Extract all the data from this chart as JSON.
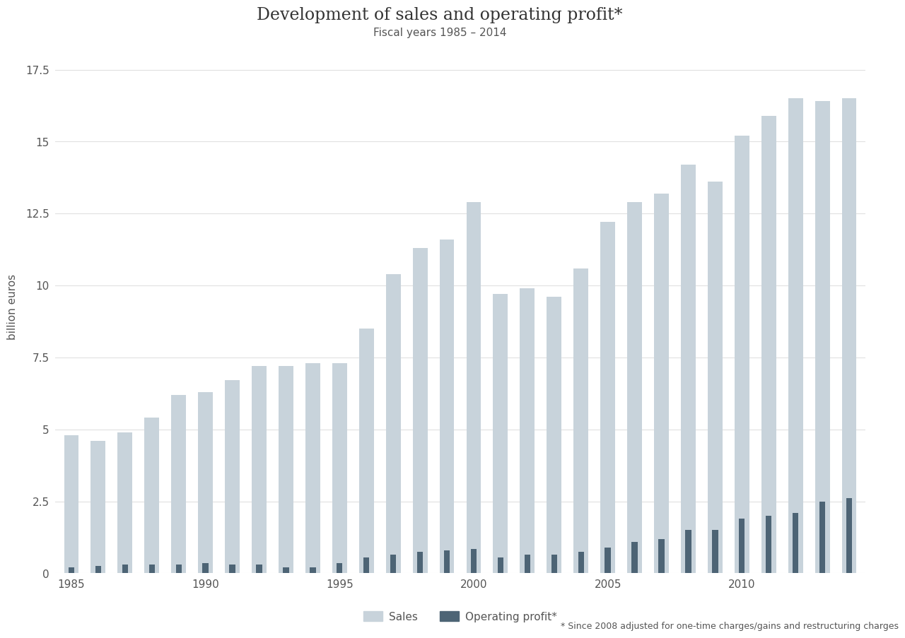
{
  "title": "Development of sales and operating profit*",
  "subtitle": "Fiscal years 1985 – 2014",
  "ylabel": "billion euros",
  "footnote": "* Since 2008 adjusted for one-time charges/gains and restructuring charges",
  "years": [
    1985,
    1986,
    1987,
    1988,
    1989,
    1990,
    1991,
    1992,
    1993,
    1994,
    1995,
    1996,
    1997,
    1998,
    1999,
    2000,
    2001,
    2002,
    2003,
    2004,
    2005,
    2006,
    2007,
    2008,
    2009,
    2010,
    2011,
    2012,
    2013,
    2014
  ],
  "sales": [
    4.8,
    4.6,
    4.9,
    5.4,
    6.2,
    6.3,
    6.7,
    7.2,
    7.2,
    7.3,
    7.3,
    8.5,
    10.4,
    11.3,
    11.6,
    12.9,
    9.7,
    9.9,
    9.6,
    10.6,
    12.2,
    12.9,
    13.2,
    14.2,
    13.6,
    15.2,
    15.9,
    16.5,
    16.4,
    16.5
  ],
  "op_profit": [
    0.2,
    0.25,
    0.3,
    0.3,
    0.3,
    0.35,
    0.3,
    0.3,
    0.2,
    0.2,
    0.35,
    0.55,
    0.65,
    0.75,
    0.8,
    0.85,
    0.55,
    0.65,
    0.65,
    0.75,
    0.9,
    1.1,
    1.2,
    1.5,
    1.5,
    1.9,
    2.0,
    2.1,
    2.5,
    2.6
  ],
  "sales_color": "#c8d3db",
  "op_profit_color": "#4d6475",
  "background_color": "#ffffff",
  "grid_color": "#e0e0e0",
  "text_color": "#555555",
  "ylim": [
    0,
    18.5
  ],
  "yticks": [
    0,
    2.5,
    5.0,
    7.5,
    10.0,
    12.5,
    15.0,
    17.5
  ],
  "bar_width": 0.55,
  "op_bar_width": 0.22,
  "legend_labels": [
    "Sales",
    "Operating profit*"
  ],
  "title_fontsize": 17,
  "subtitle_fontsize": 11,
  "axis_label_fontsize": 11,
  "tick_fontsize": 11,
  "legend_fontsize": 11,
  "footnote_fontsize": 9
}
